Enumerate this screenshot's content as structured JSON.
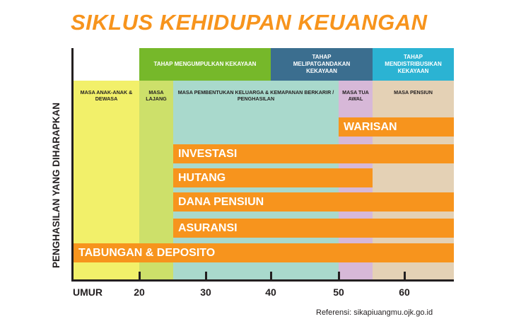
{
  "title": "SIKLUS KEHIDUPAN KEUANGAN",
  "y_axis_label": "PENGHASILAN YANG DIHARAPKAN",
  "phases": [
    {
      "label": "TAHAP MENGUMPULKAN KEKAYAAN",
      "color": "#76b82a",
      "from": 20,
      "to": 40
    },
    {
      "label": "TAHAP MELIPATGANDAKAN KEKAYAAN",
      "color": "#3b6e8f",
      "from": 40,
      "to": 55
    },
    {
      "label": "TAHAP MENDISTRIBUSIKAN KEKAYAAN",
      "color": "#2bb3d3",
      "from": 55,
      "to": 67
    }
  ],
  "periods": [
    {
      "label": "MASA ANAK-ANAK & DEWASA",
      "color": "#f2f06a",
      "from": 0,
      "to": 20
    },
    {
      "label": "MASA LAJANG",
      "color": "#cde06a",
      "from": 20,
      "to": 25
    },
    {
      "label": "MASA PEMBENTUKAN KELUARGA & KEMAPANAN BERKARIR / PENGHASILAN",
      "color": "#a9d9cc",
      "from": 25,
      "to": 50
    },
    {
      "label": "MASA TUA AWAL",
      "color": "#d7b8d8",
      "from": 50,
      "to": 55
    },
    {
      "label": "MASA PENSIUN",
      "color": "#e4d1b5",
      "from": 55,
      "to": 67
    }
  ],
  "bars": [
    {
      "label": "WARISAN",
      "from": 50,
      "to": 67
    },
    {
      "label": "INVESTASI",
      "from": 25,
      "to": 67
    },
    {
      "label": "HUTANG",
      "from": 25,
      "to": 55
    },
    {
      "label": "DANA PENSIUN",
      "from": 25,
      "to": 67
    },
    {
      "label": "ASURANSI",
      "from": 25,
      "to": 67
    },
    {
      "label": "TABUNGAN & DEPOSITO",
      "from": 0,
      "to": 67
    }
  ],
  "x_axis": {
    "label": "UMUR",
    "ticks": [
      20,
      30,
      40,
      50,
      60
    ]
  },
  "reference": "Referensi: sikapiuangmu.ojk.go.id"
}
